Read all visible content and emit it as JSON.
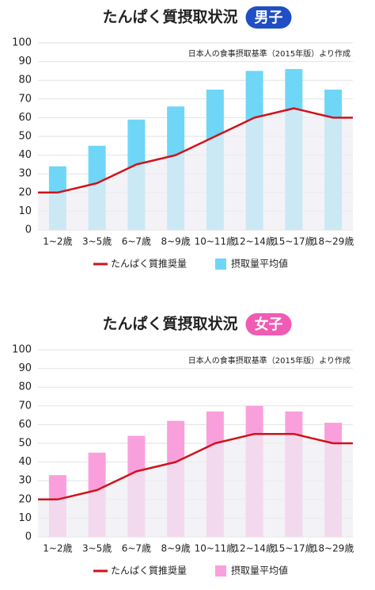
{
  "chart_data": [
    {
      "type": "bar",
      "title": "たんぱく質摂取状況",
      "subtitle": "男子",
      "subtitle_color": "#1f4fc2",
      "note": "日本人の食事摂取基準（2015年版）より作成",
      "categories": [
        "1~2歳",
        "3~5歳",
        "6~7歳",
        "8~9歳",
        "10~11歳",
        "12~14歳",
        "15~17歳",
        "18~29歳"
      ],
      "series": [
        {
          "name": "たんぱく質推奨量",
          "type": "line",
          "color": "#d0121c",
          "values": [
            20,
            25,
            35,
            40,
            50,
            60,
            65,
            60
          ]
        },
        {
          "name": "摂取量平均値",
          "type": "bar",
          "color": "#6fd6f7",
          "values": [
            34,
            45,
            59,
            66,
            75,
            85,
            86,
            75
          ]
        }
      ],
      "ylim": [
        0,
        100
      ],
      "yticks": [
        0,
        10,
        20,
        30,
        40,
        50,
        60,
        70,
        80,
        90,
        100
      ],
      "grid": true
    },
    {
      "type": "bar",
      "title": "たんぱく質摂取状況",
      "subtitle": "女子",
      "subtitle_color": "#f05bb3",
      "note": "日本人の食事摂取基準（2015年版）より作成",
      "categories": [
        "1~2歳",
        "3~5歳",
        "6~7歳",
        "8~9歳",
        "10~11歳",
        "12~14歳",
        "15~17歳",
        "18~29歳"
      ],
      "series": [
        {
          "name": "たんぱく質推奨量",
          "type": "line",
          "color": "#d0121c",
          "values": [
            20,
            25,
            35,
            40,
            50,
            55,
            55,
            50
          ]
        },
        {
          "name": "摂取量平均値",
          "type": "bar",
          "color": "#f9a0dc",
          "values": [
            33,
            45,
            54,
            62,
            67,
            70,
            67,
            61
          ]
        }
      ],
      "ylim": [
        0,
        100
      ],
      "yticks": [
        0,
        10,
        20,
        30,
        40,
        50,
        60,
        70,
        80,
        90,
        100
      ],
      "grid": true
    }
  ]
}
